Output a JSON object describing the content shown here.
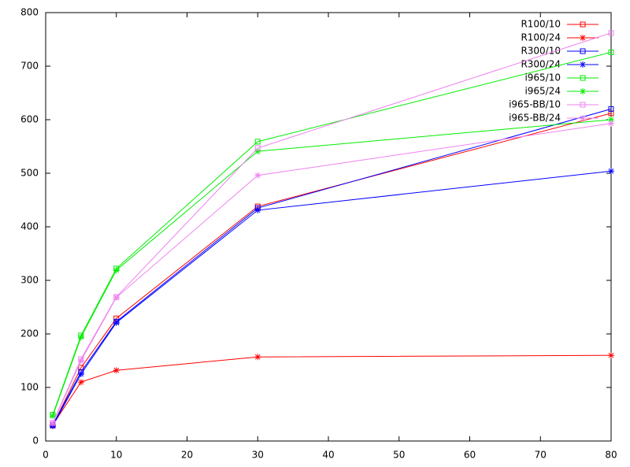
{
  "chart_data": {
    "type": "line",
    "x": [
      1,
      5,
      10,
      30,
      80
    ],
    "xlim": [
      0,
      80
    ],
    "xticks": [
      0,
      10,
      20,
      30,
      40,
      50,
      60,
      70,
      80
    ],
    "ylim": [
      0,
      800
    ],
    "yticks": [
      0,
      100,
      200,
      300,
      400,
      500,
      600,
      700,
      800
    ],
    "legend": "top-right",
    "series": [
      {
        "name": "R100/10",
        "color": "#ff0000",
        "marker": "square",
        "values": [
          29,
          137,
          229,
          438,
          612
        ]
      },
      {
        "name": "R100/24",
        "color": "#ff0000",
        "marker": "star",
        "values": [
          30,
          110,
          132,
          157,
          160
        ]
      },
      {
        "name": "R300/10",
        "color": "#0000ff",
        "marker": "square",
        "values": [
          30,
          129,
          223,
          435,
          620
        ]
      },
      {
        "name": "R300/24",
        "color": "#0000ff",
        "marker": "star",
        "values": [
          28,
          125,
          221,
          431,
          504
        ]
      },
      {
        "name": "i965/10",
        "color": "#00ee00",
        "marker": "square",
        "values": [
          49,
          197,
          322,
          559,
          726
        ]
      },
      {
        "name": "i965/24",
        "color": "#00ee00",
        "marker": "star",
        "values": [
          47,
          194,
          319,
          541,
          600
        ]
      },
      {
        "name": "i965-BB/10",
        "color": "#ee82ee",
        "marker": "square",
        "values": [
          34,
          153,
          269,
          547,
          762
        ]
      },
      {
        "name": "i965-BB/24",
        "color": "#ee82ee",
        "marker": "star",
        "values": [
          33,
          150,
          268,
          496,
          593
        ]
      }
    ]
  }
}
